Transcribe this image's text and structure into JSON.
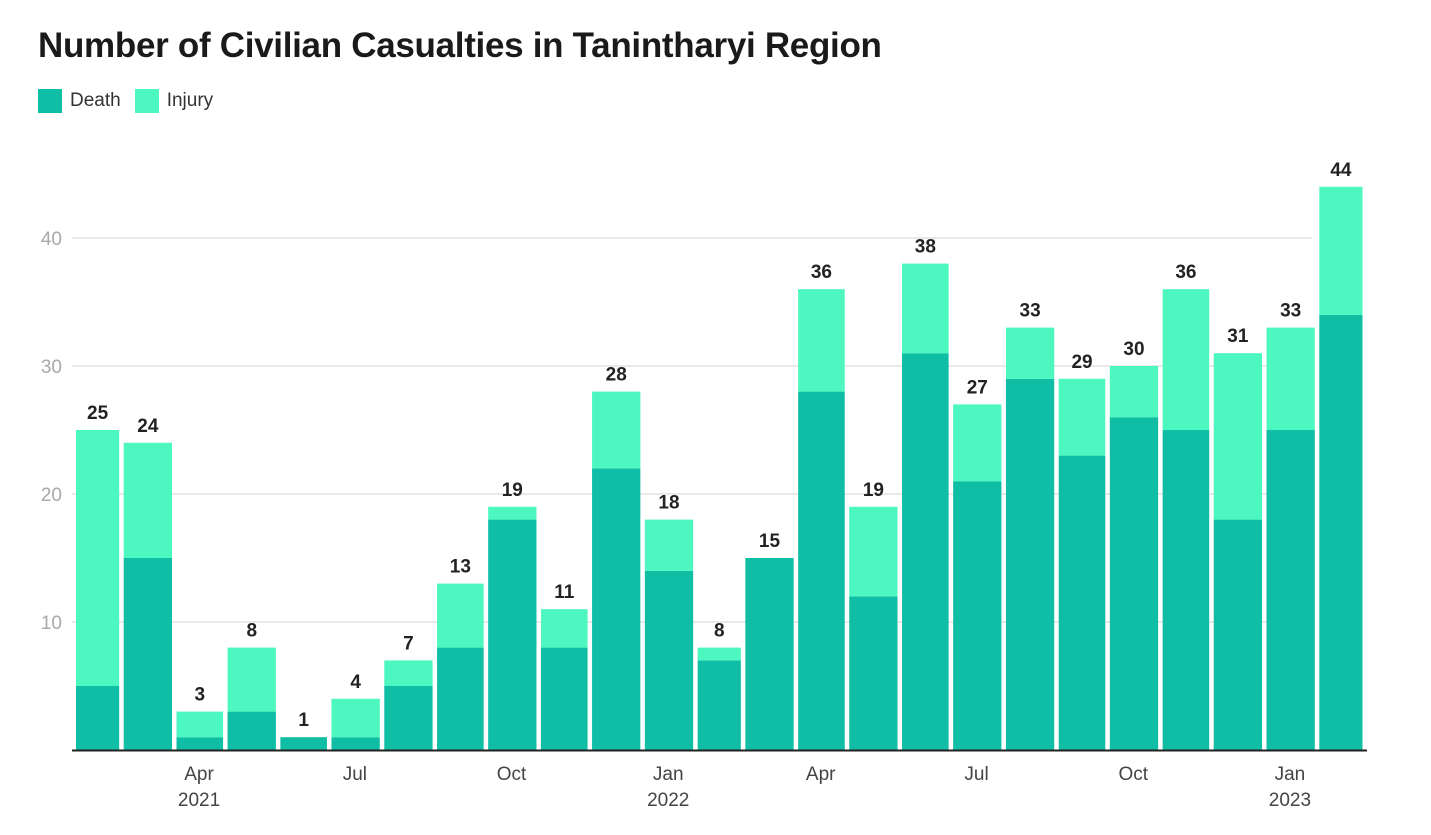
{
  "chart_data": {
    "type": "bar",
    "stacked": true,
    "title": "Number of Civilian Casualties in Tanintharyi Region",
    "categories": [
      "2021-02",
      "2021-03",
      "2021-04",
      "2021-05",
      "2021-06",
      "2021-07",
      "2021-08",
      "2021-09",
      "2021-10",
      "2021-11",
      "2021-12",
      "2022-01",
      "2022-02",
      "2022-03",
      "2022-04",
      "2022-05",
      "2022-06",
      "2022-07",
      "2022-08",
      "2022-09",
      "2022-10",
      "2022-11",
      "2022-12",
      "2023-01",
      "2023-02"
    ],
    "series": [
      {
        "name": "Death",
        "color": "#10bea5",
        "values": [
          5,
          15,
          1,
          3,
          1,
          1,
          5,
          8,
          18,
          8,
          22,
          14,
          7,
          15,
          28,
          12,
          31,
          21,
          29,
          23,
          26,
          25,
          18,
          25,
          34
        ]
      },
      {
        "name": "Injury",
        "color": "#4cf7c0",
        "values": [
          20,
          9,
          2,
          5,
          0,
          3,
          2,
          5,
          1,
          3,
          6,
          4,
          1,
          0,
          8,
          7,
          7,
          6,
          4,
          6,
          4,
          11,
          13,
          8,
          10
        ]
      }
    ],
    "totals": [
      25,
      24,
      3,
      8,
      1,
      4,
      7,
      13,
      19,
      11,
      28,
      18,
      8,
      15,
      36,
      19,
      38,
      27,
      33,
      29,
      30,
      36,
      31,
      33,
      44
    ],
    "ylim": [
      0,
      44
    ],
    "yticks": [
      10,
      20,
      30,
      40
    ],
    "xticks": [
      {
        "month": "2021-04",
        "label": "Apr",
        "year": "2021"
      },
      {
        "month": "2021-07",
        "label": "Jul",
        "year": ""
      },
      {
        "month": "2021-10",
        "label": "Oct",
        "year": ""
      },
      {
        "month": "2022-01",
        "label": "Jan",
        "year": "2022"
      },
      {
        "month": "2022-04",
        "label": "Apr",
        "year": ""
      },
      {
        "month": "2022-07",
        "label": "Jul",
        "year": ""
      },
      {
        "month": "2022-10",
        "label": "Oct",
        "year": ""
      },
      {
        "month": "2023-01",
        "label": "Jan",
        "year": "2023"
      }
    ],
    "grid": true,
    "legend_position": "top-left"
  }
}
